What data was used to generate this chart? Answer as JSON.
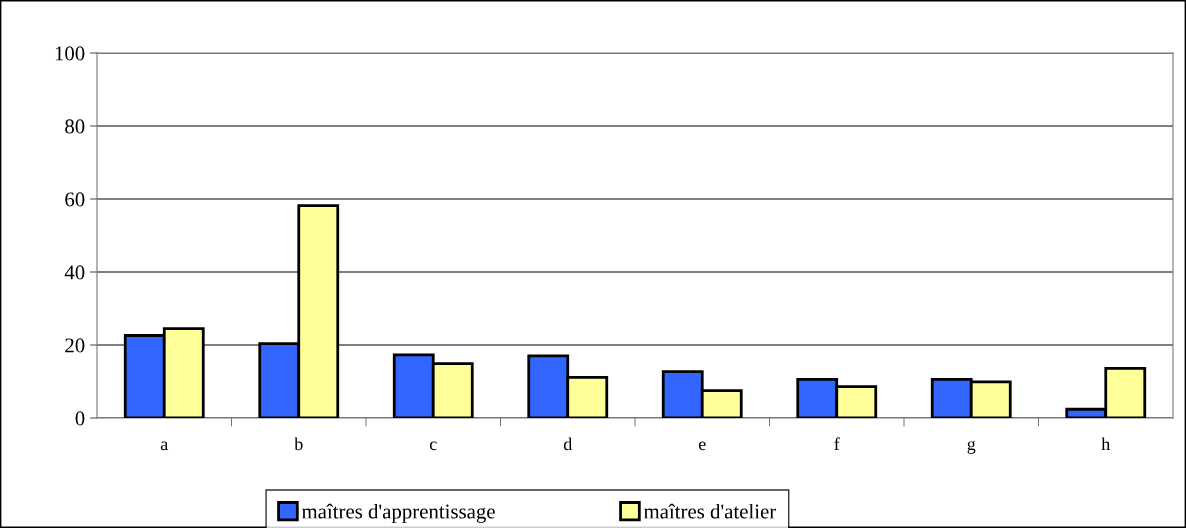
{
  "chart_data": {
    "type": "bar",
    "categories": [
      "a",
      "b",
      "c",
      "d",
      "e",
      "f",
      "g",
      "h"
    ],
    "series": [
      {
        "name": "maîtres d'apprentissage",
        "color": "#3366ff",
        "values": [
          22.6,
          20.4,
          17.3,
          17.0,
          12.7,
          10.6,
          10.6,
          2.4
        ]
      },
      {
        "name": "maîtres d'atelier",
        "color": "#ffff99",
        "values": [
          24.5,
          58.2,
          14.9,
          11.1,
          7.5,
          8.6,
          9.9,
          13.6
        ]
      }
    ],
    "ylim": [
      0,
      100
    ],
    "yticks": [
      0,
      20,
      40,
      60,
      80,
      100
    ],
    "grid": "y",
    "legend": "bottom"
  }
}
